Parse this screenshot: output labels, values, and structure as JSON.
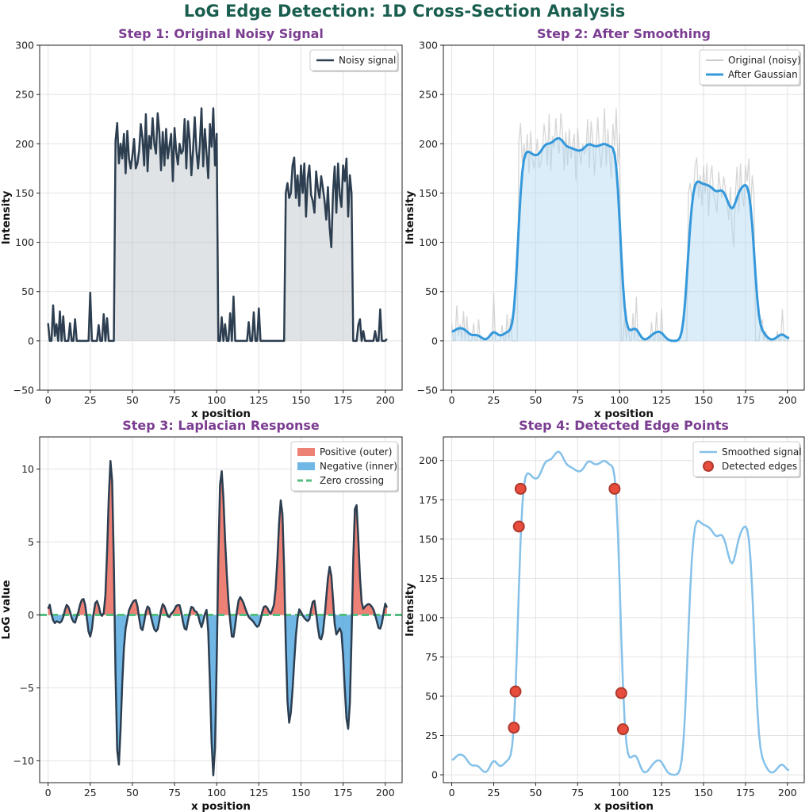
{
  "figure": {
    "suptitle": "LoG Edge Detection: 1D Cross-Section Analysis",
    "colors": {
      "title": "#1a5e4f",
      "panel_title": "#7b3d91",
      "dark_line": "#2c3e50",
      "fill_gray": "#b8c0c6",
      "blue": "#3498db",
      "light_blue_fill": "#aed6f1",
      "gray_line": "#cccccc",
      "light_blue_line": "#85c1e9",
      "red_fill": "#e74c3c",
      "blue_fill": "#3498db",
      "green_dash": "#52be80",
      "red_edge": "#b03a2e"
    }
  },
  "chart_data": [
    {
      "type": "area",
      "title": "Step 1: Original Noisy Signal",
      "xlabel": "x position",
      "ylabel": "Intensity",
      "xlim": [
        -5,
        210
      ],
      "ylim": [
        -50,
        300
      ],
      "xticks": [
        0,
        25,
        50,
        75,
        100,
        125,
        150,
        175,
        200
      ],
      "yticks": [
        -50,
        0,
        50,
        100,
        150,
        200,
        250,
        300
      ],
      "legend": [
        "Noisy signal"
      ],
      "legend_position": "top-right",
      "series": [
        {
          "name": "Noisy signal",
          "x_start": 0,
          "x_step": 1,
          "values": [
            18,
            0,
            0,
            36,
            5,
            17,
            0,
            30,
            0,
            25,
            0,
            0,
            0,
            18,
            0,
            0,
            22,
            0,
            0,
            0,
            0,
            0,
            0,
            0,
            0,
            49,
            0,
            0,
            0,
            0,
            16,
            0,
            0,
            27,
            0,
            23,
            0,
            0,
            0,
            0,
            203,
            221,
            180,
            200,
            185,
            210,
            170,
            213,
            185,
            175,
            188,
            205,
            175,
            180,
            193,
            220,
            205,
            178,
            230,
            172,
            208,
            195,
            226,
            200,
            190,
            231,
            212,
            173,
            212,
            178,
            215,
            185,
            198,
            210,
            162,
            216,
            192,
            179,
            200,
            190,
            193,
            225,
            175,
            223,
            204,
            168,
            194,
            227,
            193,
            175,
            199,
            236,
            177,
            215,
            190,
            165,
            220,
            197,
            236,
            178,
            210,
            0,
            0,
            24,
            0,
            17,
            0,
            0,
            28,
            0,
            45,
            0,
            0,
            0,
            0,
            0,
            0,
            0,
            0,
            19,
            0,
            0,
            29,
            0,
            0,
            33,
            0,
            0,
            0,
            0,
            0,
            0,
            0,
            0,
            0,
            0,
            0,
            0,
            0,
            0,
            0,
            150,
            160,
            145,
            150,
            178,
            186,
            145,
            168,
            137,
            178,
            150,
            180,
            126,
            165,
            178,
            148,
            142,
            130,
            172,
            155,
            145,
            167,
            155,
            142,
            123,
            156,
            115,
            95,
            150,
            177,
            130,
            180,
            148,
            136,
            178,
            162,
            185,
            126,
            168,
            150,
            0,
            0,
            0,
            16,
            22,
            0,
            10,
            0,
            0,
            0,
            0,
            0,
            0,
            10,
            0,
            0,
            32,
            0,
            0,
            0,
            2
          ]
        }
      ]
    },
    {
      "type": "area",
      "title": "Step 2: After Smoothing",
      "xlabel": "x position",
      "ylabel": "Intensity",
      "xlim": [
        -5,
        210
      ],
      "ylim": [
        -50,
        300
      ],
      "xticks": [
        0,
        25,
        50,
        75,
        100,
        125,
        150,
        175,
        200
      ],
      "yticks": [
        -50,
        0,
        50,
        100,
        150,
        200,
        250,
        300
      ],
      "legend": [
        "Original (noisy)",
        "After Gaussian"
      ],
      "legend_position": "top-right",
      "series": [
        {
          "name": "Original (noisy)",
          "source": "Step 1 noisy signal"
        },
        {
          "name": "After Gaussian",
          "kind": "gaussian-smoothed",
          "sigma": 2.3
        }
      ]
    },
    {
      "type": "area",
      "title": "Step 3: Laplacian Response",
      "xlabel": "x position",
      "ylabel": "LoG value",
      "xlim": [
        -5,
        210
      ],
      "ylim": [
        -11.5,
        12.2
      ],
      "xticks": [
        0,
        25,
        50,
        75,
        100,
        125,
        150,
        175,
        200
      ],
      "yticks": [
        -10,
        -5,
        0,
        5,
        10
      ],
      "ytick_labels": [
        "−10",
        "−5",
        "0",
        "5",
        "10"
      ],
      "legend": [
        "Positive (outer)",
        "Negative (inner)",
        "Zero crossing"
      ],
      "legend_position": "top-right",
      "peaks": [
        {
          "x": 38,
          "value": 10.3
        },
        {
          "x": 42,
          "value": -10.6
        },
        {
          "x": 98,
          "value": -10.7
        },
        {
          "x": 101,
          "value": 11.0
        },
        {
          "x": 138,
          "value": 9.0
        },
        {
          "x": 142,
          "value": -8.2
        },
        {
          "x": 178,
          "value": -8.2
        },
        {
          "x": 181,
          "value": 8.1
        }
      ],
      "series": [
        {
          "name": "LoG response",
          "kind": "laplacian-of-smoothed"
        }
      ]
    },
    {
      "type": "scatter",
      "title": "Step 4: Detected Edge Points",
      "xlabel": "x position",
      "ylabel": "Intensity",
      "xlim": [
        -5,
        210
      ],
      "ylim": [
        -5,
        215
      ],
      "xticks": [
        0,
        25,
        50,
        75,
        100,
        125,
        150,
        175,
        200
      ],
      "yticks": [
        0,
        25,
        50,
        75,
        100,
        125,
        150,
        175,
        200
      ],
      "legend": [
        "Smoothed signal",
        "Detected edges"
      ],
      "legend_position": "top-right",
      "series": [
        {
          "name": "Smoothed signal",
          "source": "Step 2 smoothed signal"
        },
        {
          "name": "Detected edges",
          "points": [
            {
              "x": 37,
              "y": 30
            },
            {
              "x": 38,
              "y": 53
            },
            {
              "x": 40,
              "y": 158
            },
            {
              "x": 41,
              "y": 182
            },
            {
              "x": 97,
              "y": 182
            },
            {
              "x": 101,
              "y": 52
            },
            {
              "x": 102,
              "y": 29
            }
          ]
        }
      ]
    }
  ]
}
